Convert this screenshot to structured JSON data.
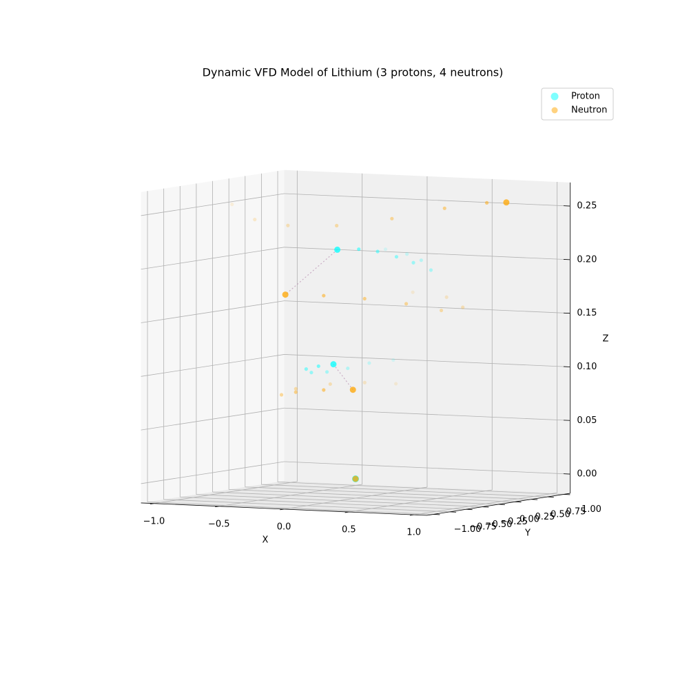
{
  "chart_data": {
    "type": "scatter3d",
    "title": "Dynamic VFD Model of Lithium (3 protons, 4 neutrons)",
    "xlabel": "X",
    "ylabel": "Y",
    "zlabel": "Z",
    "xlim": [
      -1.1,
      1.1
    ],
    "ylim": [
      -1.1,
      1.1
    ],
    "zlim": [
      -0.018,
      0.272
    ],
    "xticks": [
      {
        "value": -1,
        "label": "−1.0"
      },
      {
        "value": -0.5,
        "label": "−0.5"
      },
      {
        "value": 0,
        "label": "0.0"
      },
      {
        "value": 0.5,
        "label": "0.5"
      },
      {
        "value": 1,
        "label": "1.0"
      }
    ],
    "yticks": [
      {
        "value": -1,
        "label": "−1.00"
      },
      {
        "value": -0.75,
        "label": "−0.75"
      },
      {
        "value": -0.5,
        "label": "−0.50"
      },
      {
        "value": -0.25,
        "label": "−0.25"
      },
      {
        "value": 0,
        "label": "0.00"
      },
      {
        "value": 0.25,
        "label": "0.25"
      },
      {
        "value": 0.5,
        "label": "0.50"
      },
      {
        "value": 0.75,
        "label": "0.75"
      },
      {
        "value": 1,
        "label": "1.00"
      }
    ],
    "zticks": [
      {
        "value": 0,
        "label": "0.00"
      },
      {
        "value": 0.05,
        "label": "0.05"
      },
      {
        "value": 0.1,
        "label": "0.10"
      },
      {
        "value": 0.15,
        "label": "0.15"
      },
      {
        "value": 0.2,
        "label": "0.20"
      },
      {
        "value": 0.25,
        "label": "0.25"
      }
    ],
    "grid": true,
    "legend": "upper right",
    "series": [
      {
        "name": "Proton",
        "color": "#00ffff",
        "tracks": [
          {
            "x": [
              0
            ],
            "y": [
              0
            ],
            "z": [
              0
            ]
          },
          {
            "x": [
              -0.12,
              0.07,
              0.23,
              0.38,
              0.32,
              0.24,
              0.13,
              0.01,
              -0.14
            ],
            "y": [
              0.7,
              0.65,
              0.55,
              0.4,
              0.25,
              0.15,
              0.08,
              0.03,
              0
            ],
            "z": [
              0.207,
              0.204,
              0.2,
              0.193,
              0.201,
              0.207,
              0.212,
              0.214,
              0.213
            ]
          },
          {
            "x": [
              -0.06,
              -0.17,
              -0.26,
              -0.37,
              -0.44,
              -0.44,
              -0.31,
              -0.17
            ],
            "y": [
              0.7,
              0.55,
              0.4,
              0.3,
              0.2,
              0.12,
              0.05,
              0
            ],
            "z": [
              0.104,
              0.102,
              0.098,
              0.095,
              0.095,
              0.099,
              0.103,
              0.106
            ]
          }
        ]
      },
      {
        "name": "Neutron",
        "color": "#ffa500",
        "tracks": [
          {
            "x": [
              0
            ],
            "y": [
              0
            ],
            "z": [
              0
            ]
          },
          {
            "x": [
              -0.7,
              -0.6,
              -0.42,
              -0.12,
              0.23,
              0.56,
              0.81,
              0.91
            ],
            "y": [
              -0.5,
              -0.35,
              -0.2,
              -0.05,
              0.1,
              0.25,
              0.4,
              0.5
            ],
            "z": [
              0.257,
              0.242,
              0.236,
              0.236,
              0.243,
              0.253,
              0.258,
              0.258
            ]
          },
          {
            "x": [
              0.09,
              0.4,
              0.6,
              0.51,
              0.29,
              0.01,
              -0.27,
              -0.54
            ],
            "y": [
              0.7,
              0.6,
              0.45,
              0.3,
              0.2,
              0.12,
              0.05,
              0
            ],
            "z": [
              0.168,
              0.166,
              0.159,
              0.157,
              0.163,
              0.167,
              0.169,
              0.169
            ]
          },
          {
            "x": [
              -0.04,
              -0.23,
              -0.42,
              -0.61,
              -0.67,
              -0.52,
              -0.27,
              -0.02
            ],
            "y": [
              0.7,
              0.6,
              0.45,
              0.3,
              0.2,
              0.12,
              0.05,
              0
            ],
            "z": [
              0.082,
              0.083,
              0.082,
              0.078,
              0.073,
              0.077,
              0.081,
              0.083
            ]
          }
        ]
      }
    ]
  }
}
